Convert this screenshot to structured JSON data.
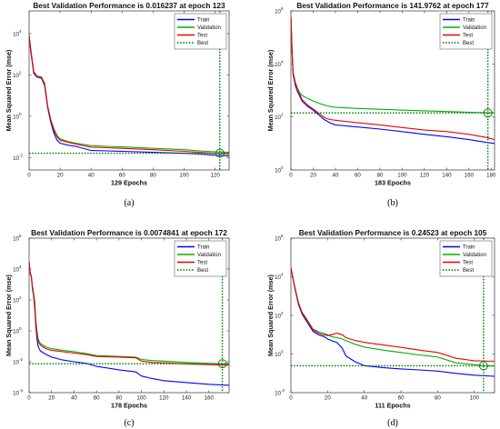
{
  "colors": {
    "train": "#0000ff",
    "validation": "#00b000",
    "test": "#ee0000",
    "best": "#007a00"
  },
  "legend": [
    "Train",
    "Validation",
    "Test",
    "Best"
  ],
  "chart_data": [
    {
      "type": "line",
      "caption": "(a)",
      "title": "Best Validation Performance is 0.016237 at epoch 123",
      "xlabel": "129 Epochs",
      "ylabel": "Mean Squared Error  (mse)",
      "yscale": "log",
      "xlim": [
        0,
        129
      ],
      "ylim_exp": [
        -2.6,
        5.1
      ],
      "xticks": [
        0,
        20,
        40,
        60,
        80,
        100,
        120
      ],
      "yticks_exp": [
        -2,
        0,
        2,
        4
      ],
      "best": {
        "epoch": 123,
        "value": 0.016237
      },
      "series": [
        {
          "name": "Train",
          "x": [
            0,
            1,
            3,
            5,
            8,
            10,
            12,
            14,
            16,
            18,
            20,
            25,
            30,
            40,
            50,
            60,
            80,
            100,
            110,
            120,
            129
          ],
          "y": [
            8000,
            1500,
            120,
            80,
            70,
            30,
            2.5,
            0.5,
            0.15,
            0.07,
            0.05,
            0.04,
            0.035,
            0.022,
            0.021,
            0.02,
            0.018,
            0.016,
            0.015,
            0.013,
            0.012
          ]
        },
        {
          "name": "Validation",
          "x": [
            0,
            1,
            3,
            5,
            8,
            10,
            12,
            14,
            16,
            18,
            20,
            25,
            30,
            40,
            50,
            60,
            80,
            100,
            110,
            120,
            129
          ],
          "y": [
            8000,
            2000,
            150,
            90,
            80,
            40,
            3,
            0.7,
            0.25,
            0.12,
            0.08,
            0.06,
            0.05,
            0.038,
            0.035,
            0.033,
            0.028,
            0.024,
            0.021,
            0.019,
            0.018
          ]
        },
        {
          "name": "Test",
          "x": [
            0,
            1,
            3,
            5,
            8,
            10,
            12,
            14,
            16,
            18,
            20,
            25,
            30,
            40,
            50,
            60,
            80,
            100,
            110,
            120,
            129
          ],
          "y": [
            8000,
            1800,
            140,
            85,
            75,
            35,
            3,
            0.6,
            0.2,
            0.1,
            0.07,
            0.055,
            0.045,
            0.032,
            0.03,
            0.028,
            0.024,
            0.02,
            0.018,
            0.016,
            0.015
          ]
        }
      ]
    },
    {
      "type": "line",
      "caption": "(b)",
      "title": "Best Validation Performance is 141.9762 at epoch 177",
      "xlabel": "183 Epochs",
      "ylabel": "Mean Squared Error  (mse)",
      "yscale": "log",
      "xlim": [
        0,
        183
      ],
      "ylim_exp": [
        0,
        6
      ],
      "xticks": [
        0,
        20,
        40,
        60,
        80,
        100,
        120,
        140,
        160,
        180
      ],
      "yticks_exp": [
        0,
        2,
        4,
        6
      ],
      "best": {
        "epoch": 177,
        "value": 141.9762
      },
      "series": [
        {
          "name": "Train",
          "x": [
            0,
            1,
            2,
            4,
            6,
            8,
            10,
            15,
            20,
            25,
            30,
            35,
            40,
            60,
            80,
            100,
            120,
            140,
            160,
            175,
            183
          ],
          "y": [
            600000,
            30000,
            4000,
            1500,
            900,
            600,
            400,
            250,
            180,
            120,
            80,
            60,
            50,
            42,
            35,
            28,
            22,
            18,
            14,
            11,
            10
          ]
        },
        {
          "name": "Validation",
          "x": [
            0,
            1,
            2,
            4,
            6,
            8,
            10,
            15,
            20,
            25,
            30,
            35,
            40,
            60,
            80,
            100,
            120,
            140,
            160,
            175,
            183
          ],
          "y": [
            600000,
            40000,
            5000,
            2000,
            1200,
            800,
            650,
            500,
            400,
            330,
            280,
            250,
            230,
            210,
            195,
            180,
            170,
            160,
            150,
            143,
            142
          ]
        },
        {
          "name": "Test",
          "x": [
            0,
            1,
            2,
            4,
            6,
            8,
            10,
            15,
            20,
            25,
            30,
            35,
            40,
            60,
            80,
            100,
            120,
            140,
            160,
            175,
            183
          ],
          "y": [
            600000,
            35000,
            4500,
            1800,
            1000,
            700,
            450,
            280,
            200,
            140,
            95,
            80,
            75,
            60,
            50,
            40,
            32,
            28,
            22,
            17,
            14
          ]
        }
      ]
    },
    {
      "type": "line",
      "caption": "(c)",
      "title": "Best Validation Performance is 0.0074841 at epoch 172",
      "xlabel": "178 Epochs",
      "ylabel": "Mean Squared Error  (mse)",
      "yscale": "log",
      "xlim": [
        0,
        178
      ],
      "ylim_exp": [
        -4,
        6
      ],
      "xticks": [
        0,
        20,
        40,
        60,
        80,
        100,
        120,
        140,
        160
      ],
      "yticks_exp": [
        -4,
        -2,
        0,
        2,
        4,
        6
      ],
      "best": {
        "epoch": 172,
        "value": 0.0074841
      },
      "series": [
        {
          "name": "Train",
          "x": [
            0,
            1,
            2,
            3,
            4,
            5,
            6,
            7,
            8,
            10,
            15,
            20,
            30,
            40,
            50,
            60,
            80,
            95,
            100,
            110,
            120,
            140,
            160,
            178
          ],
          "y": [
            30000,
            5000,
            3000,
            500,
            200,
            30,
            2,
            0.3,
            0.1,
            0.05,
            0.03,
            0.02,
            0.013,
            0.01,
            0.008,
            0.005,
            0.003,
            0.0022,
            0.0012,
            0.0008,
            0.0006,
            0.00045,
            0.00035,
            0.0003
          ]
        },
        {
          "name": "Validation",
          "x": [
            0,
            1,
            2,
            3,
            4,
            5,
            6,
            7,
            8,
            10,
            15,
            20,
            30,
            40,
            50,
            60,
            80,
            95,
            100,
            110,
            120,
            140,
            160,
            178
          ],
          "y": [
            30000,
            6000,
            3500,
            800,
            300,
            80,
            5,
            1,
            0.3,
            0.15,
            0.09,
            0.07,
            0.055,
            0.045,
            0.035,
            0.025,
            0.022,
            0.02,
            0.014,
            0.012,
            0.011,
            0.009,
            0.0078,
            0.0073
          ]
        },
        {
          "name": "Test",
          "x": [
            0,
            1,
            2,
            3,
            4,
            5,
            6,
            7,
            8,
            10,
            15,
            20,
            30,
            40,
            50,
            60,
            80,
            95,
            100,
            110,
            120,
            140,
            160,
            178
          ],
          "y": [
            30000,
            5500,
            3200,
            600,
            250,
            50,
            3,
            0.6,
            0.2,
            0.12,
            0.07,
            0.055,
            0.045,
            0.036,
            0.03,
            0.022,
            0.02,
            0.018,
            0.011,
            0.009,
            0.0085,
            0.0072,
            0.0065,
            0.006
          ]
        }
      ]
    },
    {
      "type": "line",
      "caption": "(d)",
      "title": "Best Validation Performance is 0.24523 at epoch 105",
      "xlabel": "111 Epochs",
      "ylabel": "Mean Squared Error  (mse)",
      "yscale": "log",
      "xlim": [
        0,
        111
      ],
      "ylim_exp": [
        -2,
        6
      ],
      "xticks": [
        0,
        20,
        40,
        60,
        80,
        100
      ],
      "yticks_exp": [
        -2,
        0,
        2,
        4,
        6
      ],
      "best": {
        "epoch": 105,
        "value": 0.24523
      },
      "series": [
        {
          "name": "Train",
          "x": [
            0,
            2,
            4,
            6,
            8,
            10,
            12,
            15,
            18,
            20,
            22,
            25,
            28,
            30,
            35,
            40,
            50,
            60,
            70,
            80,
            90,
            100,
            111
          ],
          "y": [
            30000,
            3000,
            400,
            120,
            60,
            30,
            15,
            10,
            8,
            6,
            5,
            4,
            2,
            0.8,
            0.4,
            0.25,
            0.2,
            0.17,
            0.15,
            0.13,
            0.1,
            0.08,
            0.07
          ]
        },
        {
          "name": "Validation",
          "x": [
            0,
            2,
            4,
            6,
            8,
            10,
            12,
            15,
            18,
            20,
            22,
            25,
            28,
            30,
            35,
            40,
            50,
            60,
            70,
            80,
            90,
            100,
            105,
            111
          ],
          "y": [
            30000,
            3500,
            500,
            150,
            80,
            40,
            20,
            14,
            12,
            10,
            8,
            7,
            6,
            5,
            3.2,
            2.3,
            1.6,
            1.2,
            0.9,
            0.7,
            0.35,
            0.28,
            0.245,
            0.24
          ]
        },
        {
          "name": "Test",
          "x": [
            0,
            2,
            4,
            6,
            8,
            10,
            12,
            15,
            18,
            20,
            22,
            25,
            28,
            30,
            35,
            40,
            50,
            60,
            70,
            80,
            90,
            100,
            111
          ],
          "y": [
            30000,
            3200,
            450,
            140,
            70,
            35,
            18,
            12,
            10,
            9,
            10,
            12,
            10,
            7,
            5,
            4,
            3,
            2.2,
            1.6,
            1.2,
            0.6,
            0.45,
            0.42
          ]
        }
      ]
    }
  ]
}
